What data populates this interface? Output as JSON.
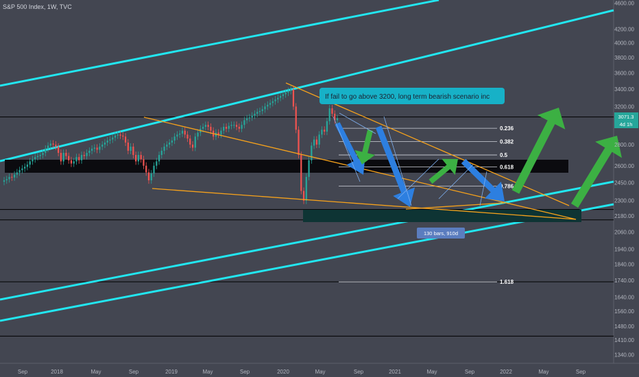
{
  "header": {
    "title": "S&P 500 Index, 1W, TVC"
  },
  "chart_data": {
    "type": "candlestick",
    "ylim": [
      1300,
      4650
    ],
    "y_ticks": [
      4600,
      4200,
      4000,
      3800,
      3600,
      3400,
      3200,
      3000,
      2800,
      2600,
      2450,
      2300,
      2180,
      2060,
      1940,
      1840,
      1740,
      1640,
      1560,
      1480,
      1410,
      1340
    ],
    "x_ticks": [
      "Sep",
      "2018",
      "May",
      "Sep",
      "2019",
      "May",
      "Sep",
      "2020",
      "May",
      "Sep",
      "2021",
      "May",
      "Sep",
      "2022",
      "May",
      "Sep"
    ],
    "price_label": "3071.3",
    "countdown_label": "4d 1h",
    "fib_levels": [
      {
        "label": "0.236",
        "price": 2965
      },
      {
        "label": "0.382",
        "price": 2830
      },
      {
        "label": "0.5",
        "price": 2700
      },
      {
        "label": "0.618",
        "price": 2590
      },
      {
        "label": "0.786",
        "price": 2420
      },
      {
        "label": "1.618",
        "price": 1730
      }
    ],
    "horizontal_levels": [
      3085,
      2230,
      2150,
      1730,
      1430
    ],
    "annotation_text": "If fail to go above 3200, long term bearish scenario inc",
    "range_label": "130 bars, 910d",
    "closes": [
      2470,
      2480,
      2500,
      2495,
      2520,
      2540,
      2560,
      2575,
      2590,
      2610,
      2640,
      2660,
      2680,
      2690,
      2700,
      2720,
      2760,
      2790,
      2810,
      2800,
      2780,
      2720,
      2640,
      2720,
      2690,
      2650,
      2620,
      2640,
      2680,
      2650,
      2700,
      2690,
      2720,
      2740,
      2760,
      2770,
      2750,
      2780,
      2800,
      2820,
      2840,
      2850,
      2870,
      2890,
      2900,
      2890,
      2880,
      2820,
      2740,
      2780,
      2700,
      2640,
      2700,
      2660,
      2600,
      2540,
      2470,
      2530,
      2600,
      2640,
      2700,
      2740,
      2780,
      2800,
      2820,
      2840,
      2880,
      2900,
      2910,
      2940,
      2900,
      2860,
      2800,
      2770,
      2880,
      2920,
      2960,
      2980,
      3000,
      2980,
      2940,
      2880,
      2920,
      2900,
      2940,
      2980,
      2960,
      2990,
      3000,
      3000,
      2980,
      2960,
      3000,
      3050,
      3070,
      3080,
      3100,
      3120,
      3140,
      3150,
      3170,
      3200,
      3220,
      3240,
      3260,
      3280,
      3300,
      3320,
      3340,
      3360,
      3380,
      3400,
      3200,
      2950,
      2700,
      2380,
      2300,
      2500,
      2650,
      2790,
      2850,
      2800,
      2900,
      2950,
      2930,
      3040,
      3180,
      3120,
      3050,
      3071
    ]
  }
}
